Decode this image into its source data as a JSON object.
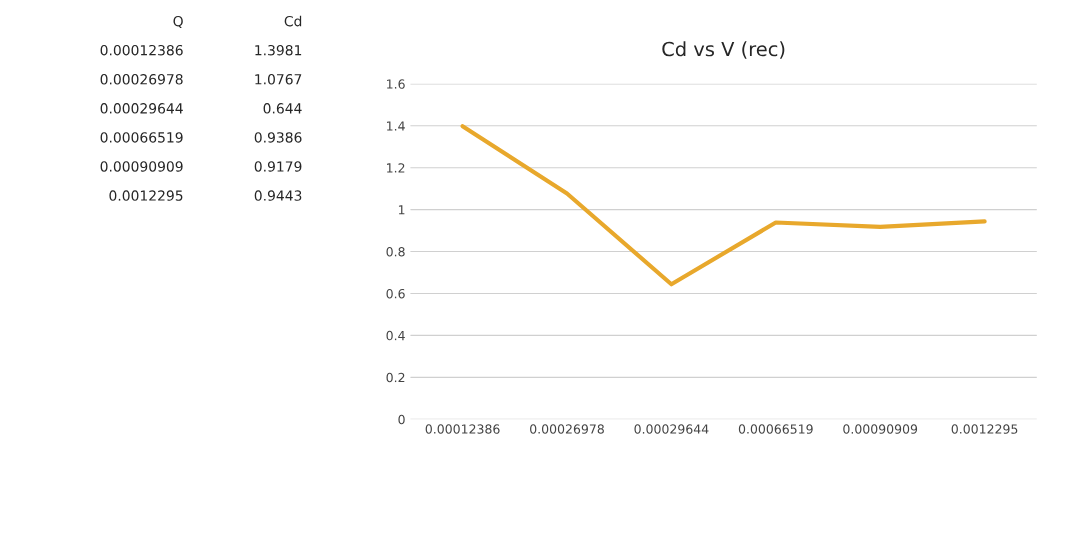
{
  "chart_data": {
    "type": "line",
    "title": "Cd vs V (rec)",
    "categories": [
      "0.00012386",
      "0.00026978",
      "0.00029644",
      "0.00066519",
      "0.00090909",
      "0.0012295"
    ],
    "series": [
      {
        "color": "#e8a82c",
        "values": [
          1.3981,
          1.0767,
          0.644,
          0.9386,
          0.9179,
          0.9443
        ]
      }
    ],
    "ylim": [
      0,
      1.6
    ],
    "yticks": [
      0,
      0.2,
      0.4,
      0.6,
      0.8,
      1,
      1.2,
      1.4,
      1.6
    ],
    "grid": "y",
    "legend": false,
    "marker": "none",
    "line_style": "solid",
    "annotations": [
      "Q",
      "Cd",
      "0.00012386",
      "1.3981",
      "0.00026978",
      "1.0767",
      "0.00029644",
      "0.644",
      "0.00066519",
      "0.9386",
      "0.00090909",
      "0.9179",
      "0.0012295",
      "0.9443"
    ]
  }
}
